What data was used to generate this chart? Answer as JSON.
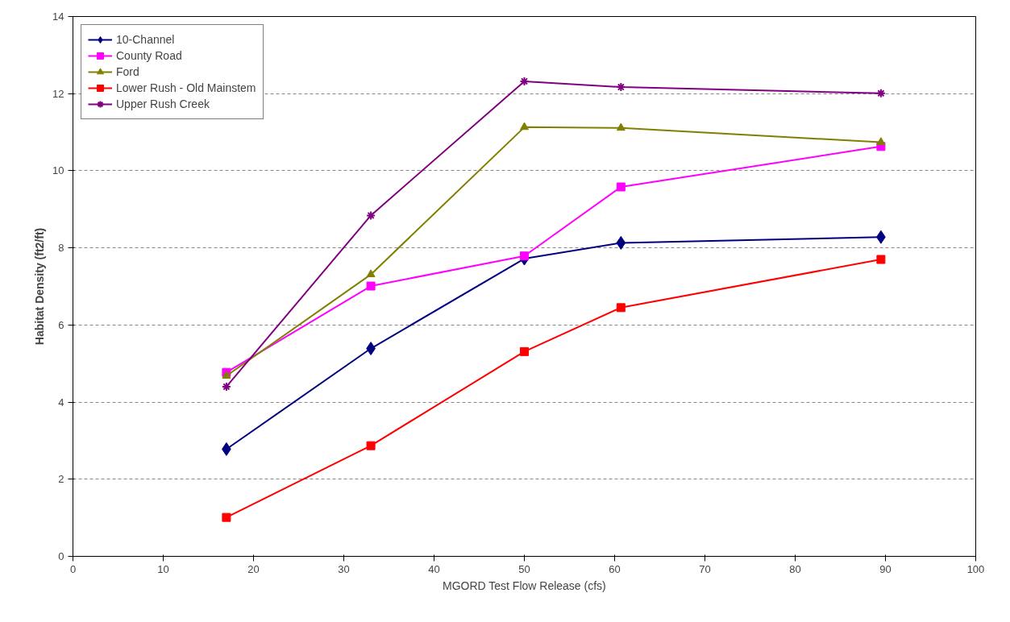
{
  "chart_data": {
    "type": "line",
    "xlabel": "MGORD Test Flow Release (cfs)",
    "ylabel": "Habitat Density (ft2/ft)",
    "x": [
      17,
      33,
      50,
      60.7,
      89.5
    ],
    "series": [
      {
        "name": "10-Channel",
        "color": "#000080",
        "marker": "diamond",
        "values": [
          2.78,
          5.39,
          7.72,
          8.13,
          8.28
        ]
      },
      {
        "name": "County Road",
        "color": "#ff00ff",
        "marker": "square",
        "values": [
          4.77,
          7.01,
          7.79,
          9.58,
          10.63
        ]
      },
      {
        "name": "Ford",
        "color": "#808000",
        "marker": "triangle",
        "values": [
          4.68,
          7.31,
          11.13,
          11.11,
          10.74
        ]
      },
      {
        "name": "Lower Rush - Old Mainstem",
        "color": "#ff0000",
        "marker": "square",
        "values": [
          1.01,
          2.87,
          5.31,
          6.45,
          7.7
        ]
      },
      {
        "name": "Upper Rush Creek",
        "color": "#800080",
        "marker": "cross",
        "values": [
          4.4,
          8.84,
          12.32,
          12.17,
          12.01
        ]
      }
    ],
    "xlim": [
      0,
      100
    ],
    "xticks": [
      0,
      10,
      20,
      30,
      40,
      50,
      60,
      70,
      80,
      90,
      100
    ],
    "ylim": [
      0,
      14
    ],
    "yticks": [
      0,
      2,
      4,
      6,
      8,
      10,
      12,
      14
    ],
    "grid": "y",
    "legend": "top left",
    "line_style": "solid"
  }
}
